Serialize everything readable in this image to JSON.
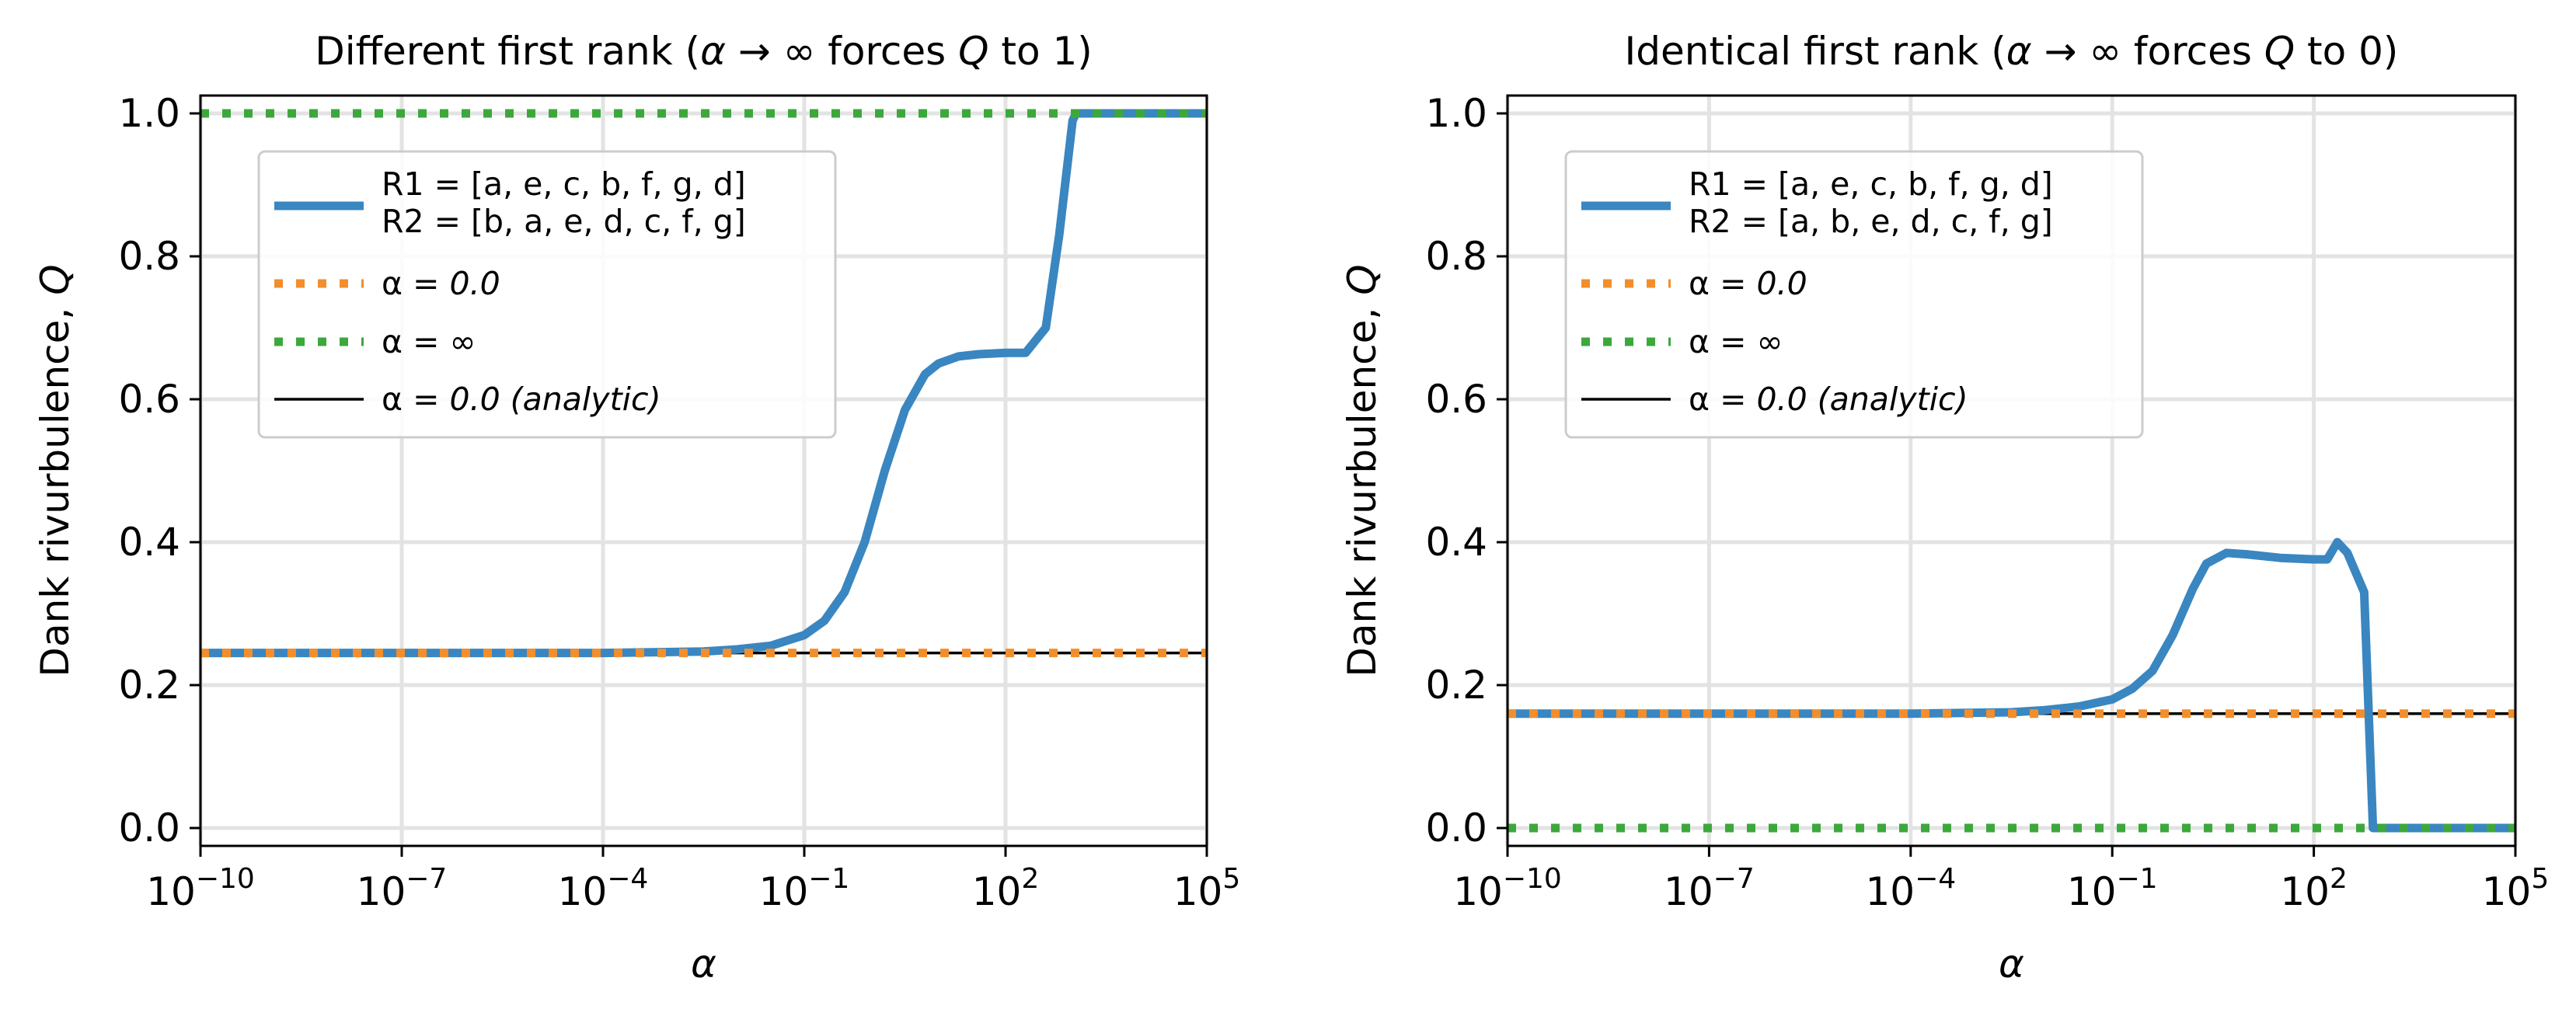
{
  "colors": {
    "series_blue": "#3a86c0",
    "series_orange": "#f28e2b",
    "series_green": "#3ca83c",
    "analytic_black": "#000000",
    "grid": "#e3e3e3"
  },
  "chart_data": [
    {
      "type": "line",
      "title_parts": [
        "Different first rank (",
        "α",
        " → ∞ forces ",
        "Q",
        " to 1)"
      ],
      "xlabel": "α",
      "ylabel_parts": [
        "Dank rivurbulence, ",
        "Q"
      ],
      "x_scale": "log",
      "xlim": [
        1e-10,
        100000.0
      ],
      "ylim": [
        -0.025,
        1.025
      ],
      "x_ticks": [
        -10,
        -7,
        -4,
        -1,
        2,
        5
      ],
      "x_tick_labels": [
        "10^-10",
        "10^-7",
        "10^-4",
        "10^-1",
        "10^2",
        "10^5"
      ],
      "y_ticks": [
        0.0,
        0.2,
        0.4,
        0.6,
        0.8,
        1.0
      ],
      "y_tick_labels": [
        "0.0",
        "0.2",
        "0.4",
        "0.6",
        "0.8",
        "1.0"
      ],
      "grid": true,
      "legend_position": "upper-left",
      "series": [
        {
          "label_lines": [
            "R1 = [a, e, c, b, f, g, d]",
            "R2 = [b, a, e, d, c, f, g]"
          ],
          "style": "solid-thick",
          "color": "#3a86c0",
          "x_log10": [
            -10,
            -4,
            -2.5,
            -2,
            -1.5,
            -1,
            -0.7,
            -0.4,
            -0.1,
            0.2,
            0.5,
            0.8,
            1.0,
            1.3,
            1.6,
            2.0,
            2.3,
            2.6,
            2.8,
            3.0,
            3.05,
            3.2,
            5
          ],
          "y": [
            0.245,
            0.245,
            0.247,
            0.25,
            0.255,
            0.27,
            0.29,
            0.33,
            0.4,
            0.5,
            0.585,
            0.635,
            0.65,
            0.66,
            0.663,
            0.665,
            0.665,
            0.7,
            0.83,
            0.99,
            1.0,
            1.0,
            1.0
          ]
        },
        {
          "label_parts": [
            "α",
            " = 0.0"
          ],
          "style": "dotted",
          "color": "#f28e2b",
          "x_log10": [
            -10,
            5
          ],
          "y": [
            0.245,
            0.245
          ]
        },
        {
          "label_parts": [
            "α",
            " = ∞"
          ],
          "style": "dotted",
          "color": "#3ca83c",
          "x_log10": [
            -10,
            5
          ],
          "y": [
            1.0,
            1.0
          ]
        },
        {
          "label_parts": [
            "α",
            " = 0.0 (analytic)"
          ],
          "style": "solid-thin",
          "color": "#000000",
          "x_log10": [
            -10,
            5
          ],
          "y": [
            0.245,
            0.245
          ]
        }
      ]
    },
    {
      "type": "line",
      "title_parts": [
        "Identical first rank (",
        "α",
        " → ∞ forces ",
        "Q",
        " to 0)"
      ],
      "xlabel": "α",
      "ylabel_parts": [
        "Dank rivurbulence, ",
        "Q"
      ],
      "x_scale": "log",
      "xlim": [
        1e-10,
        100000.0
      ],
      "ylim": [
        -0.025,
        1.025
      ],
      "x_ticks": [
        -10,
        -7,
        -4,
        -1,
        2,
        5
      ],
      "x_tick_labels": [
        "10^-10",
        "10^-7",
        "10^-4",
        "10^-1",
        "10^2",
        "10^5"
      ],
      "y_ticks": [
        0.0,
        0.2,
        0.4,
        0.6,
        0.8,
        1.0
      ],
      "y_tick_labels": [
        "0.0",
        "0.2",
        "0.4",
        "0.6",
        "0.8",
        "1.0"
      ],
      "grid": true,
      "legend_position": "upper-left",
      "series": [
        {
          "label_lines": [
            "R1 = [a, e, c, b, f, g, d]",
            "R2 = [a, b, e, d, c, f, g]"
          ],
          "style": "solid-thick",
          "color": "#3a86c0",
          "x_log10": [
            -10,
            -4,
            -2.5,
            -2,
            -1.5,
            -1,
            -0.7,
            -0.4,
            -0.1,
            0.2,
            0.4,
            0.7,
            1.0,
            1.5,
            2.0,
            2.2,
            2.35,
            2.5,
            2.75,
            2.88,
            2.95,
            5
          ],
          "y": [
            0.16,
            0.16,
            0.162,
            0.165,
            0.17,
            0.18,
            0.195,
            0.22,
            0.27,
            0.335,
            0.37,
            0.385,
            0.383,
            0.378,
            0.376,
            0.376,
            0.4,
            0.385,
            0.33,
            0.0,
            0.0,
            0.0
          ]
        },
        {
          "label_parts": [
            "α",
            " = 0.0"
          ],
          "style": "dotted",
          "color": "#f28e2b",
          "x_log10": [
            -10,
            5
          ],
          "y": [
            0.16,
            0.16
          ]
        },
        {
          "label_parts": [
            "α",
            " = ∞"
          ],
          "style": "dotted",
          "color": "#3ca83c",
          "x_log10": [
            -10,
            5
          ],
          "y": [
            0.0,
            0.0
          ]
        },
        {
          "label_parts": [
            "α",
            " = 0.0 (analytic)"
          ],
          "style": "solid-thin",
          "color": "#000000",
          "x_log10": [
            -10,
            5
          ],
          "y": [
            0.16,
            0.16
          ]
        }
      ]
    }
  ]
}
